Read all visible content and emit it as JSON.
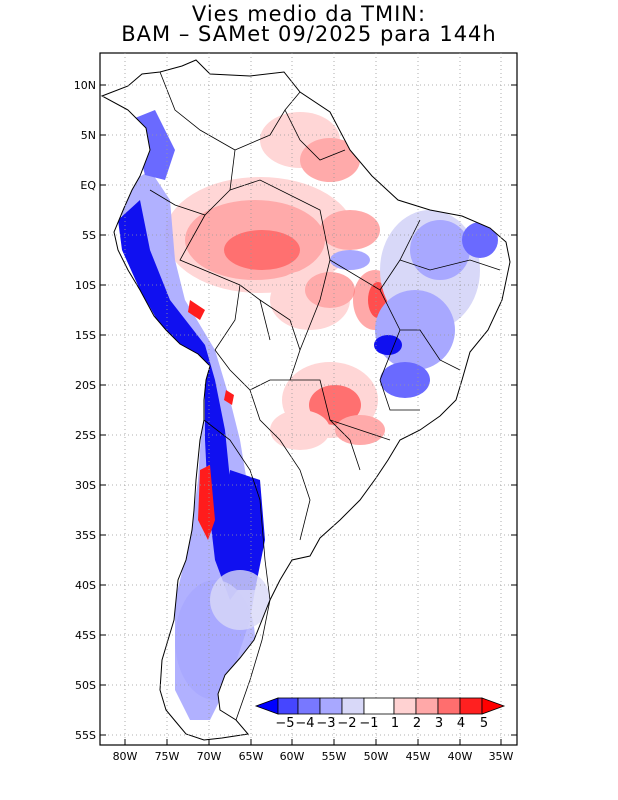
{
  "title": {
    "line1": "Vies medio da TMIN:",
    "line2": "BAM – SAMet 09/2025  para 144h"
  },
  "axes": {
    "lon_labels": [
      "80W",
      "75W",
      "70W",
      "65W",
      "60W",
      "55W",
      "50W",
      "45W",
      "40W",
      "35W"
    ],
    "lat_labels": [
      "10N",
      "5N",
      "EQ",
      "5S",
      "10S",
      "15S",
      "20S",
      "25S",
      "30S",
      "35S",
      "40S",
      "45S",
      "50S",
      "55S"
    ],
    "lon_range": [
      -83,
      -34
    ],
    "lat_range": [
      13,
      -56
    ]
  },
  "colorbar": {
    "labels": [
      "−5",
      "−4",
      "−3",
      "−2",
      "−1",
      "1",
      "2",
      "3",
      "4",
      "5"
    ],
    "colors": [
      "#0000ff",
      "#4646ff",
      "#7878ff",
      "#a8a8ff",
      "#d8d8f8",
      "#ffffff",
      "#ffd2d2",
      "#ffa8a8",
      "#ff6e6e",
      "#ff2020",
      "#ff0000"
    ]
  },
  "colors": {
    "neg_strong": "#1010f0",
    "neg_mid": "#6a6aff",
    "neg_light": "#a8a8ff",
    "neg_faint": "#d8d8f8",
    "pos_faint": "#ffd6d6",
    "pos_light": "#ffaaaa",
    "pos_mid": "#ff7070",
    "pos_strong": "#ff1c1c"
  }
}
